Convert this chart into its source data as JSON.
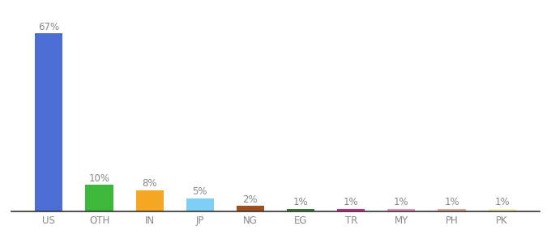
{
  "categories": [
    "US",
    "OTH",
    "IN",
    "JP",
    "NG",
    "EG",
    "TR",
    "MY",
    "PH",
    "PK"
  ],
  "values": [
    67,
    10,
    8,
    5,
    2,
    1,
    1,
    1,
    1,
    1
  ],
  "colors": [
    "#4a6ed4",
    "#3db83b",
    "#f5a623",
    "#7ecef5",
    "#a05020",
    "#2e7d32",
    "#e91e8c",
    "#f48fb1",
    "#e8a898",
    "#f5f0c0"
  ],
  "bar_labels": [
    "67%",
    "10%",
    "8%",
    "5%",
    "2%",
    "1%",
    "1%",
    "1%",
    "1%",
    "1%"
  ],
  "background_color": "#ffffff",
  "label_fontsize": 8.5,
  "tick_fontsize": 8.5,
  "label_color": "#888888",
  "tick_color": "#888888",
  "ylim": [
    0,
    75
  ],
  "bar_width": 0.55
}
